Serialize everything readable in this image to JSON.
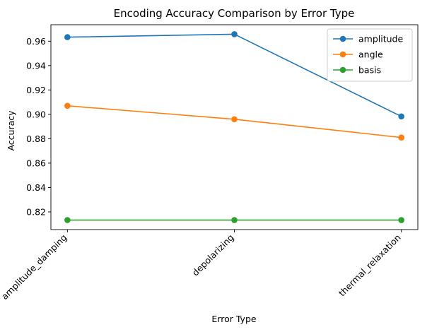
{
  "chart_data": {
    "type": "line",
    "title": "Encoding Accuracy Comparison by Error Type",
    "xlabel": "Error Type",
    "ylabel": "Accuracy",
    "categories": [
      "amplitude_damping",
      "depolarizing",
      "thermal_relaxation"
    ],
    "ylim": [
      0.8055,
      0.9735
    ],
    "yticks": [
      0.82,
      0.84,
      0.86,
      0.88,
      0.9,
      0.92,
      0.94,
      0.96
    ],
    "ytick_labels": [
      "0.82",
      "0.84",
      "0.86",
      "0.88",
      "0.90",
      "0.92",
      "0.94",
      "0.96"
    ],
    "grid": false,
    "legend_position": "top-right",
    "series": [
      {
        "name": "amplitude",
        "color": "#1f77b4",
        "marker": "circle",
        "values": [
          0.9633,
          0.9657,
          0.8983
        ]
      },
      {
        "name": "angle",
        "color": "#ff7f0e",
        "marker": "circle",
        "values": [
          0.907,
          0.896,
          0.881
        ]
      },
      {
        "name": "basis",
        "color": "#2ca02c",
        "marker": "circle",
        "values": [
          0.8133,
          0.8133,
          0.8133
        ]
      }
    ]
  }
}
